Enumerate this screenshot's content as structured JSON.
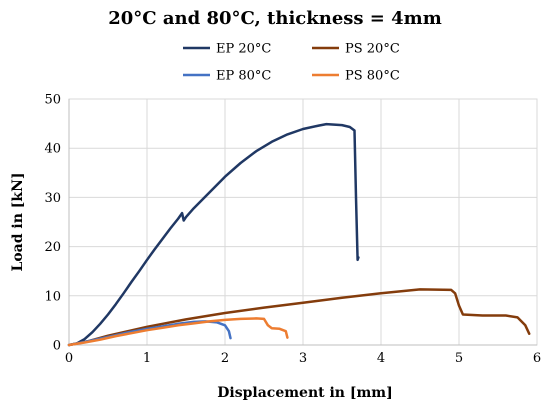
{
  "chart_data": {
    "type": "line",
    "title": "20°C and 80°C, thickness = 4mm",
    "xlabel": "Displacement in [mm]",
    "ylabel": "Load in [kN]",
    "xlim": [
      0,
      6
    ],
    "ylim": [
      0,
      50
    ],
    "xticks": [
      "0",
      "1",
      "2",
      "3",
      "4",
      "5",
      "6"
    ],
    "yticks": [
      "0",
      "10",
      "20",
      "30",
      "40",
      "50"
    ],
    "grid": true,
    "legend_position": "top",
    "series": [
      {
        "name": "EP 20°C",
        "color": "#203864",
        "points": [
          [
            0,
            0
          ],
          [
            0.1,
            0.3
          ],
          [
            0.2,
            1.2
          ],
          [
            0.3,
            2.6
          ],
          [
            0.4,
            4.3
          ],
          [
            0.5,
            6.2
          ],
          [
            0.6,
            8.3
          ],
          [
            0.7,
            10.5
          ],
          [
            0.8,
            12.8
          ],
          [
            0.9,
            15.0
          ],
          [
            1.0,
            17.3
          ],
          [
            1.1,
            19.5
          ],
          [
            1.2,
            21.6
          ],
          [
            1.3,
            23.7
          ],
          [
            1.4,
            25.7
          ],
          [
            1.45,
            26.8
          ],
          [
            1.47,
            25.3
          ],
          [
            1.5,
            26.0
          ],
          [
            1.6,
            27.8
          ],
          [
            1.8,
            31.0
          ],
          [
            2.0,
            34.2
          ],
          [
            2.2,
            37.0
          ],
          [
            2.4,
            39.4
          ],
          [
            2.6,
            41.3
          ],
          [
            2.8,
            42.8
          ],
          [
            3.0,
            43.9
          ],
          [
            3.2,
            44.6
          ],
          [
            3.3,
            44.9
          ],
          [
            3.4,
            44.8
          ],
          [
            3.5,
            44.7
          ],
          [
            3.6,
            44.3
          ],
          [
            3.66,
            43.6
          ],
          [
            3.68,
            30.0
          ],
          [
            3.7,
            17.3
          ],
          [
            3.71,
            17.8
          ]
        ]
      },
      {
        "name": "PS 20°C",
        "color": "#843c0c",
        "points": [
          [
            0,
            0
          ],
          [
            0.25,
            0.8
          ],
          [
            0.5,
            1.9
          ],
          [
            1.0,
            3.7
          ],
          [
            1.5,
            5.2
          ],
          [
            2.0,
            6.5
          ],
          [
            2.5,
            7.6
          ],
          [
            3.0,
            8.6
          ],
          [
            3.5,
            9.6
          ],
          [
            4.0,
            10.5
          ],
          [
            4.5,
            11.3
          ],
          [
            4.9,
            11.2
          ],
          [
            4.95,
            10.5
          ],
          [
            5.0,
            8.0
          ],
          [
            5.05,
            6.2
          ],
          [
            5.3,
            6.0
          ],
          [
            5.6,
            6.0
          ],
          [
            5.75,
            5.6
          ],
          [
            5.85,
            4.0
          ],
          [
            5.9,
            2.3
          ]
        ]
      },
      {
        "name": "EP 80°C",
        "color": "#4472c4",
        "points": [
          [
            0,
            0
          ],
          [
            0.2,
            0.6
          ],
          [
            0.4,
            1.3
          ],
          [
            0.6,
            2.0
          ],
          [
            0.8,
            2.7
          ],
          [
            1.0,
            3.3
          ],
          [
            1.2,
            3.8
          ],
          [
            1.4,
            4.3
          ],
          [
            1.6,
            4.7
          ],
          [
            1.75,
            4.8
          ],
          [
            1.9,
            4.6
          ],
          [
            2.0,
            4.0
          ],
          [
            2.05,
            2.8
          ],
          [
            2.07,
            1.4
          ]
        ]
      },
      {
        "name": "PS 80°C",
        "color": "#ed7d31",
        "points": [
          [
            0,
            0
          ],
          [
            0.2,
            0.5
          ],
          [
            0.4,
            1.1
          ],
          [
            0.6,
            1.8
          ],
          [
            0.8,
            2.4
          ],
          [
            1.0,
            3.0
          ],
          [
            1.2,
            3.5
          ],
          [
            1.4,
            4.0
          ],
          [
            1.6,
            4.4
          ],
          [
            1.8,
            4.8
          ],
          [
            2.0,
            5.1
          ],
          [
            2.2,
            5.3
          ],
          [
            2.4,
            5.4
          ],
          [
            2.5,
            5.3
          ],
          [
            2.55,
            4.0
          ],
          [
            2.6,
            3.4
          ],
          [
            2.7,
            3.3
          ],
          [
            2.78,
            2.8
          ],
          [
            2.8,
            1.5
          ]
        ]
      }
    ]
  }
}
